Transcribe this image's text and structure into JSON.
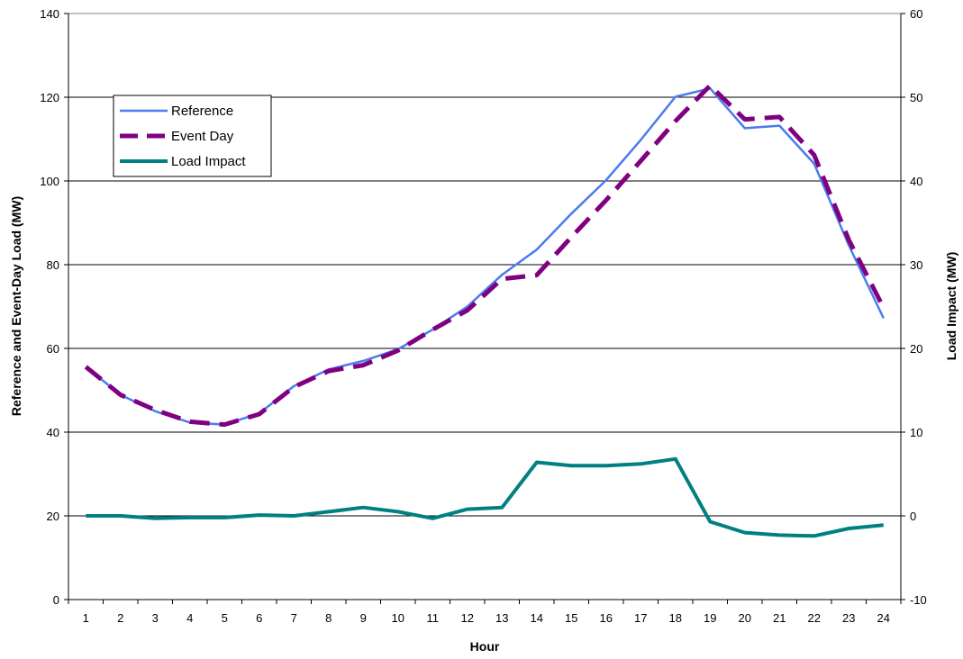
{
  "chart_data": {
    "type": "line",
    "xlabel": "Hour",
    "ylabel_left": "Reference and Event-Day Load (MW)",
    "ylabel_right": "Load Impact (MW)",
    "categories": [
      "1",
      "2",
      "3",
      "4",
      "5",
      "6",
      "7",
      "8",
      "9",
      "10",
      "11",
      "12",
      "13",
      "14",
      "15",
      "16",
      "17",
      "18",
      "19",
      "20",
      "21",
      "22",
      "23",
      "24"
    ],
    "y_left": {
      "min": 0,
      "max": 140,
      "step": 20,
      "ticks": [
        "0",
        "20",
        "40",
        "60",
        "80",
        "100",
        "120",
        "140"
      ]
    },
    "y_right": {
      "min": -10,
      "max": 60,
      "step": 10,
      "ticks": [
        "-10",
        "0",
        "10",
        "20",
        "30",
        "40",
        "50",
        "60"
      ]
    },
    "grid": "horizontal",
    "legend": {
      "placement": "top-left",
      "entries": [
        {
          "key": "reference",
          "label": "Reference"
        },
        {
          "key": "event_day",
          "label": "Event Day"
        },
        {
          "key": "load_impact",
          "label": "Load Impact"
        }
      ]
    },
    "series": [
      {
        "key": "reference",
        "name": "Reference",
        "axis": "left",
        "color": "#4a7bf0",
        "dash": "solid",
        "values": [
          55.6,
          48.9,
          45.0,
          42.3,
          41.8,
          44.5,
          51.0,
          55.0,
          57.0,
          59.8,
          64.5,
          70.0,
          77.6,
          83.6,
          92.2,
          100.2,
          109.8,
          120.1,
          122.1,
          112.6,
          113.2,
          104.1,
          84.6,
          67.2
        ]
      },
      {
        "key": "event_day",
        "name": "Event Day",
        "axis": "left",
        "color": "#800080",
        "dash": "dashed",
        "values": [
          55.6,
          48.9,
          45.3,
          42.5,
          41.8,
          44.3,
          50.8,
          54.6,
          56.0,
          59.5,
          64.5,
          69.1,
          76.6,
          77.5,
          86.6,
          95.4,
          104.8,
          114.3,
          122.8,
          114.7,
          115.3,
          106.2,
          85.9,
          69.7
        ]
      },
      {
        "key": "load_impact",
        "name": "Load Impact",
        "axis": "right",
        "color": "#008080",
        "dash": "solid",
        "values": [
          0.0,
          0.0,
          -0.3,
          -0.2,
          -0.2,
          0.1,
          0.0,
          0.5,
          1.0,
          0.5,
          -0.3,
          0.8,
          1.0,
          6.4,
          6.0,
          6.0,
          6.2,
          6.8,
          -0.7,
          -2.0,
          -2.3,
          -2.4,
          -1.5,
          -1.1
        ]
      }
    ]
  }
}
